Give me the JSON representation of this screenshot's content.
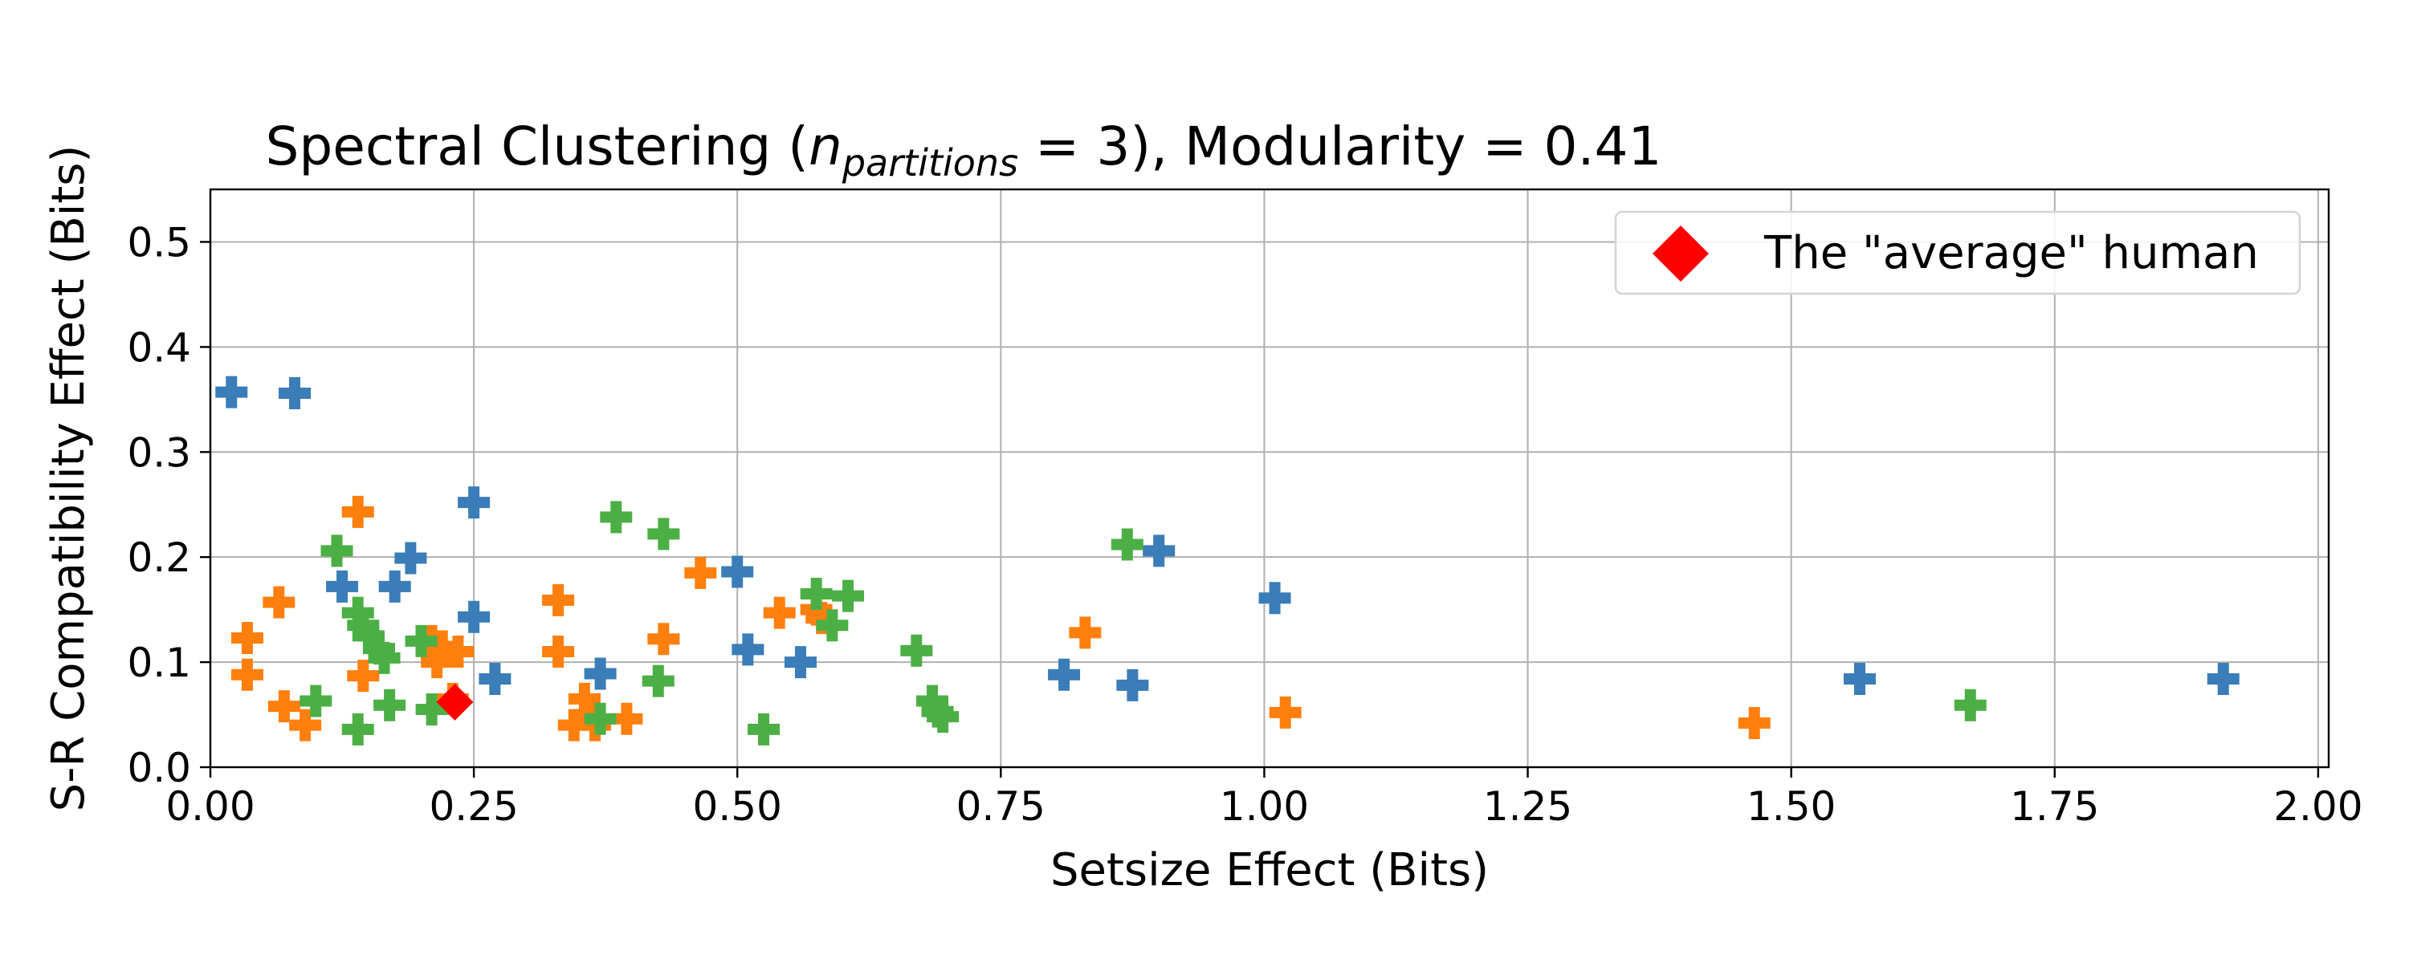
{
  "chart_data": {
    "type": "scatter",
    "title_main": "Spectral Clustering (",
    "title_var": "n",
    "title_sub": "partitions",
    "title_rest": " = 3), Modularity = 0.41",
    "xlabel": "Setsize Effect (Bits)",
    "ylabel": "S-R Compatibility Effect (Bits)",
    "xlim": [
      0.0,
      2.01
    ],
    "ylim": [
      0.0,
      0.55
    ],
    "xticks": [
      "0.00",
      "0.25",
      "0.50",
      "0.75",
      "1.00",
      "1.25",
      "1.50",
      "1.75",
      "2.00"
    ],
    "yticks": [
      "0.0",
      "0.1",
      "0.2",
      "0.3",
      "0.4",
      "0.5"
    ],
    "grid": true,
    "legend_position": "top-right",
    "series": [
      {
        "color": "#3a7db8",
        "marker": "plus",
        "points": [
          [
            0.02,
            0.357
          ],
          [
            0.08,
            0.356
          ],
          [
            0.25,
            0.252
          ],
          [
            0.19,
            0.199
          ],
          [
            0.175,
            0.172
          ],
          [
            0.125,
            0.172
          ],
          [
            0.25,
            0.143
          ],
          [
            0.27,
            0.084
          ],
          [
            0.37,
            0.089
          ],
          [
            0.5,
            0.186
          ],
          [
            0.51,
            0.112
          ],
          [
            0.56,
            0.1
          ],
          [
            0.81,
            0.088
          ],
          [
            0.875,
            0.078
          ],
          [
            0.9,
            0.206
          ],
          [
            1.01,
            0.161
          ],
          [
            1.565,
            0.084
          ],
          [
            1.91,
            0.084
          ]
        ]
      },
      {
        "color": "#ff7f0e",
        "marker": "plus",
        "points": [
          [
            0.035,
            0.123
          ],
          [
            0.035,
            0.088
          ],
          [
            0.065,
            0.157
          ],
          [
            0.07,
            0.058
          ],
          [
            0.09,
            0.04
          ],
          [
            0.14,
            0.243
          ],
          [
            0.145,
            0.087
          ],
          [
            0.21,
            0.12
          ],
          [
            0.215,
            0.1
          ],
          [
            0.22,
            0.115
          ],
          [
            0.235,
            0.11
          ],
          [
            0.23,
            0.065
          ],
          [
            0.33,
            0.159
          ],
          [
            0.33,
            0.11
          ],
          [
            0.345,
            0.04
          ],
          [
            0.355,
            0.065
          ],
          [
            0.36,
            0.05
          ],
          [
            0.365,
            0.04
          ],
          [
            0.395,
            0.046
          ],
          [
            0.43,
            0.122
          ],
          [
            0.465,
            0.185
          ],
          [
            0.54,
            0.147
          ],
          [
            0.575,
            0.15
          ],
          [
            0.58,
            0.142
          ],
          [
            0.83,
            0.128
          ],
          [
            1.02,
            0.052
          ],
          [
            1.465,
            0.042
          ]
        ]
      },
      {
        "color": "#4caf45",
        "marker": "plus",
        "points": [
          [
            0.1,
            0.063
          ],
          [
            0.12,
            0.206
          ],
          [
            0.14,
            0.147
          ],
          [
            0.145,
            0.135
          ],
          [
            0.15,
            0.125
          ],
          [
            0.16,
            0.113
          ],
          [
            0.165,
            0.104
          ],
          [
            0.17,
            0.059
          ],
          [
            0.14,
            0.036
          ],
          [
            0.2,
            0.12
          ],
          [
            0.21,
            0.055
          ],
          [
            0.385,
            0.238
          ],
          [
            0.43,
            0.222
          ],
          [
            0.425,
            0.082
          ],
          [
            0.37,
            0.046
          ],
          [
            0.525,
            0.036
          ],
          [
            0.575,
            0.165
          ],
          [
            0.59,
            0.135
          ],
          [
            0.605,
            0.163
          ],
          [
            0.67,
            0.111
          ],
          [
            0.685,
            0.063
          ],
          [
            0.69,
            0.053
          ],
          [
            0.695,
            0.048
          ],
          [
            0.87,
            0.212
          ],
          [
            1.67,
            0.059
          ]
        ]
      }
    ],
    "highlight": {
      "label": "The \"average\" human",
      "x": 0.232,
      "y": 0.062,
      "marker": "diamond",
      "color": "#ff0000"
    }
  }
}
